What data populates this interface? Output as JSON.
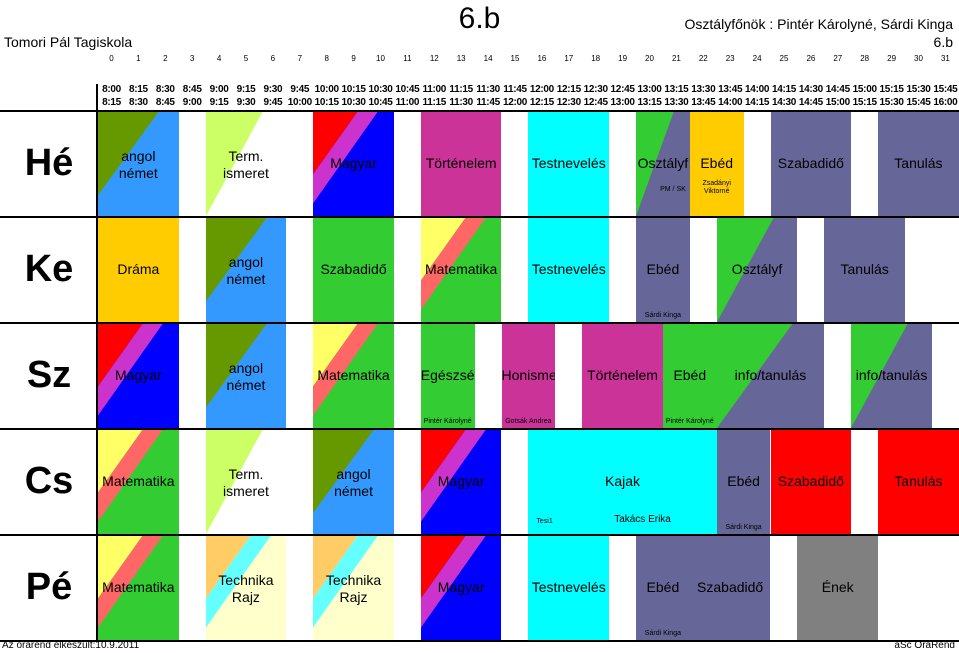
{
  "header": {
    "title": "6.b",
    "school": "Tomori Pál Tagiskola",
    "teachers": "Osztályfőnök : Pintér Károlyné, Sárdi Kinga",
    "class_name": "6.b"
  },
  "slots": [
    "0",
    "1",
    "2",
    "3",
    "4",
    "5",
    "6",
    "7",
    "8",
    "9",
    "10",
    "11",
    "12",
    "13",
    "14",
    "15",
    "16",
    "17",
    "18",
    "19",
    "20",
    "21",
    "22",
    "23",
    "24",
    "25",
    "26",
    "27",
    "28",
    "29",
    "30",
    "31"
  ],
  "times_start": [
    "8:00",
    "8:15",
    "8:30",
    "8:45",
    "9:00",
    "9:15",
    "9:30",
    "9:45",
    "10:00",
    "10:15",
    "10:30",
    "10:45",
    "11:00",
    "11:15",
    "11:30",
    "11:45",
    "12:00",
    "12:15",
    "12:30",
    "12:45",
    "13:00",
    "13:15",
    "13:30",
    "13:45",
    "14:00",
    "14:15",
    "14:30",
    "14:45",
    "15:00",
    "15:15",
    "15:30",
    "15:45"
  ],
  "times_end": [
    "8:15",
    "8:30",
    "8:45",
    "9:00",
    "9:15",
    "9:30",
    "9:45",
    "10:00",
    "10:15",
    "10:30",
    "10:45",
    "11:00",
    "11:15",
    "11:30",
    "11:45",
    "12:00",
    "12:15",
    "12:30",
    "12:45",
    "13:00",
    "13:15",
    "13:30",
    "13:45",
    "14:00",
    "14:15",
    "14:30",
    "14:45",
    "15:00",
    "15:15",
    "15:30",
    "15:45",
    "16:00"
  ],
  "days": [
    {
      "name": "Hé",
      "lessons": [
        {
          "label": "angol\nnémet",
          "start": 0,
          "span": 3,
          "bg": "#3399ff",
          "fill": "#669900",
          "shape": "diag"
        },
        {
          "label": "Term.\nismeret",
          "start": 4,
          "span": 3,
          "bg": "#ffffff",
          "fill": "#ccff66",
          "shape": "tri"
        },
        {
          "label": "Magyar",
          "start": 8,
          "span": 3,
          "bg": "#0000ff",
          "fill": "#ff0000",
          "band": "#cc33cc",
          "shape": "band"
        },
        {
          "label": "Történelem",
          "start": 12,
          "span": 3,
          "bg": "#cc3399",
          "shape": "solid"
        },
        {
          "label": "Testnevelés",
          "start": 16,
          "span": 3,
          "bg": "#00ffff",
          "shape": "solid"
        },
        {
          "label": "Osztályf",
          "start": 20,
          "span": 2,
          "bg": "#666699",
          "fill": "#33cc33",
          "shape": "tri",
          "note": "PM / SK"
        },
        {
          "label": "Ebéd",
          "start": 22,
          "span": 2,
          "bg": "#ffcc00",
          "shape": "solid",
          "note": "Zsadányi\nViktorné"
        },
        {
          "label": "Szabadidő",
          "start": 25,
          "span": 3,
          "bg": "#666699",
          "shape": "solid"
        },
        {
          "label": "Tanulás",
          "start": 29,
          "span": 3,
          "bg": "#666699",
          "shape": "solid"
        }
      ]
    },
    {
      "name": "Ke",
      "lessons": [
        {
          "label": "Dráma",
          "start": 0,
          "span": 3,
          "bg": "#ffcc00",
          "shape": "solid"
        },
        {
          "label": "angol\nnémet",
          "start": 4,
          "span": 3,
          "bg": "#3399ff",
          "fill": "#669900",
          "shape": "diag"
        },
        {
          "label": "Szabadidő",
          "start": 8,
          "span": 3,
          "bg": "#33cc33",
          "shape": "solid"
        },
        {
          "label": "Matematika",
          "start": 12,
          "span": 3,
          "bg": "#33cc33",
          "fill": "#ffff66",
          "band": "#ff6666",
          "shape": "band"
        },
        {
          "label": "Testnevelés",
          "start": 16,
          "span": 3,
          "bg": "#00ffff",
          "shape": "solid"
        },
        {
          "label": "Ebéd",
          "start": 20,
          "span": 2,
          "bg": "#666699",
          "shape": "solid",
          "note": "Sárdi Kinga"
        },
        {
          "label": "Osztályf",
          "start": 23,
          "span": 3,
          "bg": "#666699",
          "fill": "#33cc33",
          "shape": "tri"
        },
        {
          "label": "Tanulás",
          "start": 27,
          "span": 3,
          "bg": "#666699",
          "shape": "solid"
        }
      ]
    },
    {
      "name": "Sz",
      "lessons": [
        {
          "label": "Magyar",
          "start": 0,
          "span": 3,
          "bg": "#0000ff",
          "fill": "#ff0000",
          "band": "#cc33cc",
          "shape": "band"
        },
        {
          "label": "angol\nnémet",
          "start": 4,
          "span": 3,
          "bg": "#3399ff",
          "fill": "#669900",
          "shape": "diag"
        },
        {
          "label": "Matematika",
          "start": 8,
          "span": 3,
          "bg": "#33cc33",
          "fill": "#ffff66",
          "band": "#ff6666",
          "shape": "band"
        },
        {
          "label": "Egészségtan",
          "start": 12,
          "span": 2,
          "bg": "#33cc33",
          "shape": "solid",
          "note": "Pintér Károlyné"
        },
        {
          "label": "Honismeret",
          "start": 15,
          "span": 2,
          "bg": "#cc3399",
          "shape": "solid",
          "note": "Gotsák Andrea"
        },
        {
          "label": "Történelem",
          "start": 18,
          "span": 3,
          "bg": "#cc3399",
          "shape": "solid"
        },
        {
          "label": "Ebéd",
          "start": 21,
          "span": 2,
          "bg": "#33cc33",
          "shape": "solid",
          "note": "Pintér Károlyné"
        },
        {
          "label": "info/tanulás",
          "start": 23,
          "span": 4,
          "bg": "#666699",
          "fill": "#33cc33",
          "shape": "tri"
        },
        {
          "label": "info/tanulás",
          "start": 28,
          "span": 3,
          "bg": "#666699",
          "fill": "#33cc33",
          "shape": "tri"
        }
      ]
    },
    {
      "name": "Cs",
      "lessons": [
        {
          "label": "Matematika",
          "start": 0,
          "span": 3,
          "bg": "#33cc33",
          "fill": "#ffff66",
          "band": "#ff6666",
          "shape": "band"
        },
        {
          "label": "Term.\nismeret",
          "start": 4,
          "span": 3,
          "bg": "#ffffff",
          "fill": "#ccff66",
          "shape": "tri"
        },
        {
          "label": "angol\nnémet",
          "start": 8,
          "span": 3,
          "bg": "#3399ff",
          "fill": "#669900",
          "shape": "diag"
        },
        {
          "label": "Magyar",
          "start": 12,
          "span": 3,
          "bg": "#0000ff",
          "fill": "#ff0000",
          "band": "#cc33cc",
          "shape": "band"
        },
        {
          "label": "Kajak",
          "start": 16,
          "span": 7,
          "bg": "#00ffff",
          "shape": "solid",
          "note": "Tesi1",
          "note2": "Takács Erika"
        },
        {
          "label": "Ebéd",
          "start": 23,
          "span": 2,
          "bg": "#666699",
          "shape": "solid",
          "note": "Sárdi Kinga"
        },
        {
          "label": "Szabadidő",
          "start": 25,
          "span": 3,
          "bg": "#ff0000",
          "shape": "solid"
        },
        {
          "label": "Tanulás",
          "start": 29,
          "span": 3,
          "bg": "#ff0000",
          "shape": "solid"
        }
      ]
    },
    {
      "name": "Pé",
      "lessons": [
        {
          "label": "Matematika",
          "start": 0,
          "span": 3,
          "bg": "#33cc33",
          "fill": "#ffff66",
          "band": "#ff6666",
          "shape": "band"
        },
        {
          "label": "Technika\nRajz",
          "start": 4,
          "span": 3,
          "bg": "#ffffcc",
          "fill": "#ffcc66",
          "band": "#66ffff",
          "shape": "band"
        },
        {
          "label": "Technika\nRajz",
          "start": 8,
          "span": 3,
          "bg": "#ffffcc",
          "fill": "#ffcc66",
          "band": "#66ffff",
          "shape": "band"
        },
        {
          "label": "Magyar",
          "start": 12,
          "span": 3,
          "bg": "#0000ff",
          "fill": "#ff0000",
          "band": "#cc33cc",
          "shape": "band"
        },
        {
          "label": "Testnevelés",
          "start": 16,
          "span": 3,
          "bg": "#00ffff",
          "shape": "solid"
        },
        {
          "label": "Ebéd",
          "start": 20,
          "span": 2,
          "bg": "#666699",
          "shape": "solid",
          "note": "Sárdi Kinga"
        },
        {
          "label": "Szabadidő",
          "start": 22,
          "span": 3,
          "bg": "#666699",
          "shape": "solid"
        },
        {
          "label": "Ének",
          "start": 26,
          "span": 3,
          "bg": "#808080",
          "shape": "solid"
        }
      ]
    }
  ],
  "footer": {
    "left": "Az órarend elkészült:10.9.2011",
    "right": "aSc OraRend"
  }
}
